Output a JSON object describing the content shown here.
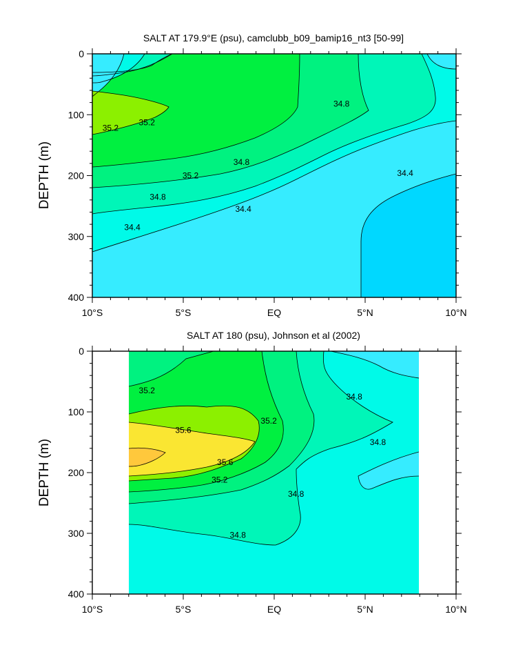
{
  "chart_data": [
    {
      "type": "contour",
      "title": "SALT AT 179.9°E (psu), camclubb_b09_bamip16_nt3 [50-99]",
      "xlabel": "",
      "ylabel": "DEPTH (m)",
      "x_ticks": [
        "10°S",
        "5°S",
        "EQ",
        "5°N",
        "10°N"
      ],
      "x_values": [
        -10,
        -5,
        0,
        5,
        10
      ],
      "xlim": [
        -10,
        10
      ],
      "y_ticks": [
        "0",
        "100",
        "200",
        "300",
        "400"
      ],
      "y_values": [
        0,
        100,
        200,
        300,
        400
      ],
      "ylim": [
        0,
        400
      ],
      "y_inverted": true,
      "data_extent": [
        -10,
        10
      ],
      "contour_labels": [
        {
          "text": "35.2",
          "lat": -7.0,
          "depth": 113
        },
        {
          "text": "35.2",
          "lat": -9.0,
          "depth": 122
        },
        {
          "text": "35.2",
          "lat": -4.6,
          "depth": 200
        },
        {
          "text": "34.8",
          "lat": 3.7,
          "depth": 82
        },
        {
          "text": "34.8",
          "lat": -1.8,
          "depth": 178
        },
        {
          "text": "34.8",
          "lat": -6.4,
          "depth": 235
        },
        {
          "text": "34.4",
          "lat": 7.2,
          "depth": 196
        },
        {
          "text": "34.4",
          "lat": -1.7,
          "depth": 255
        },
        {
          "text": "34.4",
          "lat": -7.8,
          "depth": 285
        }
      ],
      "filled_regions": [
        {
          "level": "34.0-34.4",
          "color": "#00d8ff"
        },
        {
          "level": "34.4-34.6",
          "color": "#36ecff"
        },
        {
          "level": "34.6-34.8",
          "color": "#00fae8"
        },
        {
          "level": "34.8-35.0",
          "color": "#00f6b8"
        },
        {
          "level": "35.0-35.2",
          "color": "#00f280"
        },
        {
          "level": "35.2-35.4",
          "color": "#00f040"
        },
        {
          "level": "35.4-35.6",
          "color": "#8cf000"
        }
      ]
    },
    {
      "type": "contour",
      "title": "SALT AT 180 (psu), Johnson et al (2002)",
      "xlabel": "",
      "ylabel": "DEPTH (m)",
      "x_ticks": [
        "10°S",
        "5°S",
        "EQ",
        "5°N",
        "10°N"
      ],
      "x_values": [
        -10,
        -5,
        0,
        5,
        10
      ],
      "xlim": [
        -10,
        10
      ],
      "y_ticks": [
        "0",
        "100",
        "200",
        "300",
        "400"
      ],
      "y_values": [
        0,
        100,
        200,
        300,
        400
      ],
      "ylim": [
        0,
        400
      ],
      "y_inverted": true,
      "data_extent": [
        -8,
        8
      ],
      "contour_labels": [
        {
          "text": "35.2",
          "lat": -7.0,
          "depth": 65
        },
        {
          "text": "35.6",
          "lat": -5.0,
          "depth": 130
        },
        {
          "text": "35.2",
          "lat": -0.3,
          "depth": 115
        },
        {
          "text": "35.6",
          "lat": -2.7,
          "depth": 183
        },
        {
          "text": "35.2",
          "lat": -3.0,
          "depth": 212
        },
        {
          "text": "34.8",
          "lat": 1.2,
          "depth": 235
        },
        {
          "text": "34.8",
          "lat": -2.0,
          "depth": 303
        },
        {
          "text": "34.8",
          "lat": 4.4,
          "depth": 75
        },
        {
          "text": "34.8",
          "lat": 5.7,
          "depth": 150
        }
      ],
      "filled_regions": [
        {
          "level": "34.4-34.6",
          "color": "#36ecff"
        },
        {
          "level": "34.6-34.8",
          "color": "#00fae8"
        },
        {
          "level": "34.8-35.0",
          "color": "#00f6b8"
        },
        {
          "level": "35.0-35.2",
          "color": "#00f280"
        },
        {
          "level": "35.2-35.4",
          "color": "#00f040"
        },
        {
          "level": "35.4-35.6",
          "color": "#8cf000"
        },
        {
          "level": "35.6-35.8",
          "color": "#fae632"
        },
        {
          "level": "35.8-36.0",
          "color": "#ffc83c"
        }
      ]
    }
  ]
}
